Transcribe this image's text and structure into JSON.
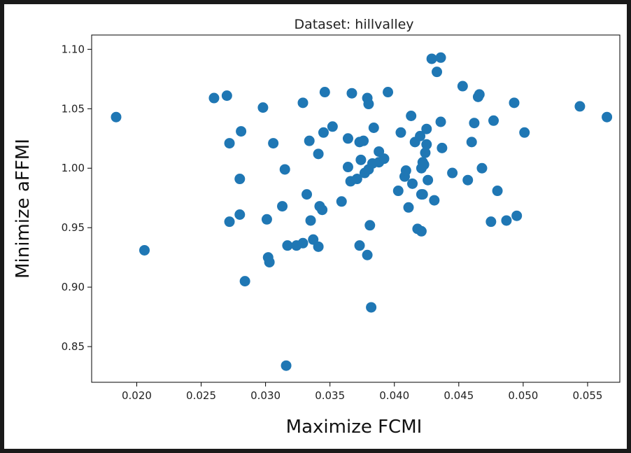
{
  "chart_data": {
    "type": "scatter",
    "title": "Dataset: hillvalley",
    "xlabel": "Maximize FCMI",
    "ylabel": "Minimize aFFMI",
    "xlim": [
      0.0165,
      0.0575
    ],
    "ylim": [
      0.82,
      1.112
    ],
    "xticks": [
      0.02,
      0.025,
      0.03,
      0.035,
      0.04,
      0.045,
      0.05,
      0.055
    ],
    "xtick_labels": [
      "0.020",
      "0.025",
      "0.030",
      "0.035",
      "0.040",
      "0.045",
      "0.050",
      "0.055"
    ],
    "yticks": [
      0.85,
      0.9,
      0.95,
      1.0,
      1.05,
      1.1
    ],
    "ytick_labels": [
      "0.85",
      "0.90",
      "0.95",
      "1.00",
      "1.05",
      "1.10"
    ],
    "grid": false,
    "marker_color": "#1f77b4",
    "points": [
      [
        0.0184,
        1.043
      ],
      [
        0.0206,
        0.931
      ],
      [
        0.026,
        1.059
      ],
      [
        0.027,
        1.061
      ],
      [
        0.0272,
        1.021
      ],
      [
        0.0272,
        0.955
      ],
      [
        0.028,
        0.991
      ],
      [
        0.028,
        0.961
      ],
      [
        0.0281,
        1.031
      ],
      [
        0.0284,
        0.905
      ],
      [
        0.0298,
        1.051
      ],
      [
        0.0301,
        0.957
      ],
      [
        0.0302,
        0.925
      ],
      [
        0.0303,
        0.921
      ],
      [
        0.0306,
        1.021
      ],
      [
        0.0313,
        0.968
      ],
      [
        0.0315,
        0.999
      ],
      [
        0.0316,
        0.834
      ],
      [
        0.0317,
        0.935
      ],
      [
        0.0324,
        0.935
      ],
      [
        0.0329,
        0.937
      ],
      [
        0.0329,
        1.055
      ],
      [
        0.0332,
        0.978
      ],
      [
        0.0334,
        1.023
      ],
      [
        0.0335,
        0.956
      ],
      [
        0.0337,
        0.94
      ],
      [
        0.0341,
        0.934
      ],
      [
        0.0341,
        1.012
      ],
      [
        0.0342,
        0.968
      ],
      [
        0.0344,
        0.965
      ],
      [
        0.0345,
        1.03
      ],
      [
        0.0346,
        1.064
      ],
      [
        0.0352,
        1.035
      ],
      [
        0.0359,
        0.972
      ],
      [
        0.0364,
        1.001
      ],
      [
        0.0364,
        1.025
      ],
      [
        0.0366,
        0.989
      ],
      [
        0.0367,
        1.063
      ],
      [
        0.0371,
        0.991
      ],
      [
        0.0373,
        0.935
      ],
      [
        0.0373,
        1.022
      ],
      [
        0.0374,
        1.007
      ],
      [
        0.0376,
        1.023
      ],
      [
        0.0377,
        0.996
      ],
      [
        0.0379,
        1.059
      ],
      [
        0.0379,
        0.927
      ],
      [
        0.038,
        0.999
      ],
      [
        0.038,
        1.054
      ],
      [
        0.0381,
        0.952
      ],
      [
        0.0382,
        0.883
      ],
      [
        0.0383,
        1.004
      ],
      [
        0.0384,
        1.034
      ],
      [
        0.0388,
        1.005
      ],
      [
        0.0388,
        1.014
      ],
      [
        0.0392,
        1.008
      ],
      [
        0.0395,
        1.064
      ],
      [
        0.0403,
        0.981
      ],
      [
        0.0405,
        1.03
      ],
      [
        0.0408,
        0.993
      ],
      [
        0.0409,
        0.998
      ],
      [
        0.0411,
        0.967
      ],
      [
        0.0413,
        1.044
      ],
      [
        0.0414,
        0.987
      ],
      [
        0.0416,
        1.022
      ],
      [
        0.0418,
        0.949
      ],
      [
        0.042,
        1.027
      ],
      [
        0.0421,
        0.947
      ],
      [
        0.0421,
        1.0
      ],
      [
        0.0421,
        0.978
      ],
      [
        0.0422,
        0.978
      ],
      [
        0.0422,
        1.005
      ],
      [
        0.0423,
        1.003
      ],
      [
        0.0424,
        1.013
      ],
      [
        0.0425,
        1.033
      ],
      [
        0.0425,
        1.02
      ],
      [
        0.0426,
        0.99
      ],
      [
        0.0429,
        1.092
      ],
      [
        0.0431,
        0.973
      ],
      [
        0.0433,
        1.081
      ],
      [
        0.0436,
        1.093
      ],
      [
        0.0436,
        1.039
      ],
      [
        0.0437,
        1.017
      ],
      [
        0.0445,
        0.996
      ],
      [
        0.0453,
        1.069
      ],
      [
        0.0457,
        0.99
      ],
      [
        0.046,
        1.022
      ],
      [
        0.0462,
        1.038
      ],
      [
        0.0465,
        1.06
      ],
      [
        0.0466,
        1.062
      ],
      [
        0.0468,
        1.0
      ],
      [
        0.0475,
        0.955
      ],
      [
        0.0477,
        1.04
      ],
      [
        0.048,
        0.981
      ],
      [
        0.0487,
        0.956
      ],
      [
        0.0493,
        1.055
      ],
      [
        0.0495,
        0.96
      ],
      [
        0.0501,
        1.03
      ],
      [
        0.0544,
        1.052
      ],
      [
        0.0565,
        1.043
      ]
    ]
  }
}
